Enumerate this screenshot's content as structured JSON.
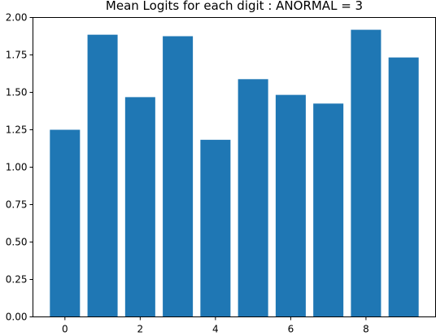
{
  "chart_data": {
    "type": "bar",
    "title": "Mean Logits for each digit : ANORMAL = 3",
    "xlabel": "",
    "ylabel": "",
    "categories": [
      0,
      1,
      2,
      3,
      4,
      5,
      6,
      7,
      8,
      9
    ],
    "values": [
      1.25,
      1.885,
      1.468,
      1.875,
      1.183,
      1.588,
      1.483,
      1.425,
      1.918,
      1.733
    ],
    "x_ticks": [
      "0",
      "2",
      "4",
      "6",
      "8"
    ],
    "y_ticks": [
      "0.00",
      "0.25",
      "0.50",
      "0.75",
      "1.00",
      "1.25",
      "1.50",
      "1.75",
      "2.00"
    ],
    "ylim": [
      0,
      2.0
    ],
    "bar_color": "#1f77b4",
    "grid": false,
    "legend": "none"
  }
}
